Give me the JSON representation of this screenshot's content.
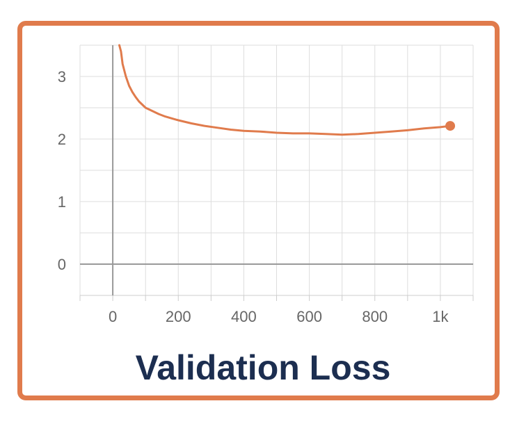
{
  "caption": "Validation Loss",
  "chart_data": {
    "type": "line",
    "title": "",
    "xlabel": "",
    "ylabel": "",
    "xlim": [
      -100,
      1100
    ],
    "ylim": [
      -0.5,
      3.5
    ],
    "grid": true,
    "x_ticks": [
      0,
      200,
      400,
      600,
      800,
      1000
    ],
    "x_tick_labels": [
      "0",
      "200",
      "400",
      "600",
      "800",
      "1k"
    ],
    "y_ticks": [
      0,
      1,
      2,
      3
    ],
    "y_tick_labels": [
      "0",
      "1",
      "2",
      "3"
    ],
    "line_color": "#e07b4c",
    "end_marker": true,
    "series": [
      {
        "x": [
          20,
          25,
          30,
          40,
          50,
          60,
          70,
          80,
          90,
          100,
          120,
          140,
          160,
          180,
          200,
          240,
          280,
          320,
          360,
          400,
          450,
          500,
          550,
          600,
          650,
          700,
          750,
          800,
          850,
          900,
          950,
          1000,
          1030
        ],
        "y": [
          3.6,
          3.4,
          3.2,
          3.0,
          2.85,
          2.75,
          2.67,
          2.6,
          2.55,
          2.5,
          2.45,
          2.4,
          2.36,
          2.33,
          2.3,
          2.25,
          2.21,
          2.18,
          2.15,
          2.13,
          2.12,
          2.1,
          2.09,
          2.09,
          2.08,
          2.07,
          2.08,
          2.1,
          2.12,
          2.14,
          2.17,
          2.19,
          2.21
        ]
      }
    ]
  }
}
